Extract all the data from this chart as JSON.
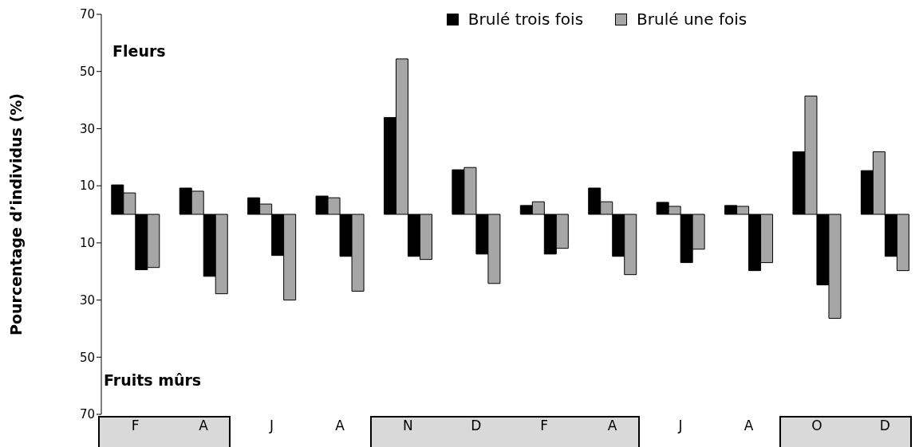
{
  "chart_data": {
    "type": "bar",
    "ylabel": "Pourcentage d’individus (%)",
    "categories": [
      "F",
      "A",
      "J",
      "A",
      "N",
      "D",
      "F",
      "A",
      "J",
      "A",
      "O",
      "D"
    ],
    "series": [
      {
        "name": "Brulé trois fois",
        "color": "#000000",
        "values": [
          10.3,
          9.2,
          5.8,
          6.4,
          33.9,
          15.6,
          3.1,
          9.2,
          4.2,
          3.1,
          21.9,
          15.3
        ]
      },
      {
        "name": "Brulé une fois",
        "color": "#a6a6a6",
        "values": [
          7.5,
          8.1,
          3.6,
          5.8,
          54.4,
          16.4,
          4.4,
          4.4,
          2.8,
          2.8,
          41.4,
          21.9
        ]
      },
      {
        "color": "#000000",
        "values": [
          -19.4,
          -21.7,
          -14.4,
          -14.7,
          -14.7,
          -13.9,
          -13.9,
          -14.7,
          -16.9,
          -19.7,
          -24.7,
          -14.7
        ]
      },
      {
        "color": "#a6a6a6",
        "values": [
          -18.6,
          -27.8,
          -30,
          -26.9,
          -15.8,
          -24.2,
          -11.9,
          -21.1,
          -12.2,
          -16.9,
          -36.4,
          -19.7
        ]
      }
    ],
    "ylim": [
      -70,
      70
    ],
    "yticks": [
      {
        "value": -70,
        "label": "70"
      },
      {
        "value": -50,
        "label": "50"
      },
      {
        "value": -30,
        "label": "30"
      },
      {
        "value": -10,
        "label": "10"
      },
      10,
      30,
      50,
      70
    ],
    "annotations": [
      "Fleurs",
      "Fruits mûrs"
    ],
    "legend": "top",
    "grid": false
  }
}
